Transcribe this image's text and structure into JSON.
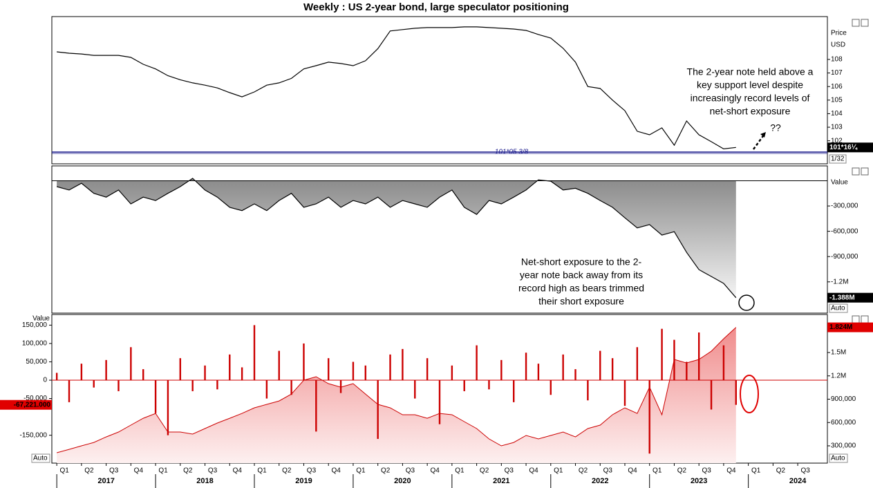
{
  "title": "Weekly : US 2-year bond, large speculator positioning",
  "x_axis": {
    "xlim": [
      2016.95,
      2024.8
    ],
    "x": [
      2017,
      2017.125,
      2017.25,
      2017.375,
      2017.5,
      2017.625,
      2017.75,
      2017.875,
      2018,
      2018.125,
      2018.25,
      2018.375,
      2018.5,
      2018.625,
      2018.75,
      2018.875,
      2019,
      2019.125,
      2019.25,
      2019.375,
      2019.5,
      2019.625,
      2019.75,
      2019.875,
      2020,
      2020.125,
      2020.25,
      2020.375,
      2020.5,
      2020.625,
      2020.75,
      2020.875,
      2021,
      2021.125,
      2021.25,
      2021.375,
      2021.5,
      2021.625,
      2021.75,
      2021.875,
      2022,
      2022.125,
      2022.25,
      2022.375,
      2022.5,
      2022.625,
      2022.75,
      2022.875,
      2023,
      2023.125,
      2023.25,
      2023.375,
      2023.5,
      2023.625,
      2023.75,
      2023.875
    ],
    "xticks": [
      {
        "value": 2017,
        "label": "Q1"
      },
      {
        "value": 2017.25,
        "label": "Q2"
      },
      {
        "value": 2017.5,
        "label": "Q3"
      },
      {
        "value": 2017.75,
        "label": "Q4"
      },
      {
        "value": 2018,
        "label": "Q1"
      },
      {
        "value": 2018.25,
        "label": "Q2"
      },
      {
        "value": 2018.5,
        "label": "Q3"
      },
      {
        "value": 2018.75,
        "label": "Q4"
      },
      {
        "value": 2019,
        "label": "Q1"
      },
      {
        "value": 2019.25,
        "label": "Q2"
      },
      {
        "value": 2019.5,
        "label": "Q3"
      },
      {
        "value": 2019.75,
        "label": "Q4"
      },
      {
        "value": 2020,
        "label": "Q1"
      },
      {
        "value": 2020.25,
        "label": "Q2"
      },
      {
        "value": 2020.5,
        "label": "Q3"
      },
      {
        "value": 2020.75,
        "label": "Q4"
      },
      {
        "value": 2021,
        "label": "Q1"
      },
      {
        "value": 2021.25,
        "label": "Q2"
      },
      {
        "value": 2021.5,
        "label": "Q3"
      },
      {
        "value": 2021.75,
        "label": "Q4"
      },
      {
        "value": 2022,
        "label": "Q1"
      },
      {
        "value": 2022.25,
        "label": "Q2"
      },
      {
        "value": 2022.5,
        "label": "Q3"
      },
      {
        "value": 2022.75,
        "label": "Q4"
      },
      {
        "value": 2023,
        "label": "Q1"
      },
      {
        "value": 2023.25,
        "label": "Q2"
      },
      {
        "value": 2023.5,
        "label": "Q3"
      },
      {
        "value": 2023.75,
        "label": "Q4"
      },
      {
        "value": 2024,
        "label": "Q1"
      },
      {
        "value": 2024.25,
        "label": "Q2"
      },
      {
        "value": 2024.5,
        "label": "Q3"
      }
    ],
    "years": [
      2017,
      2018,
      2019,
      2020,
      2021,
      2022,
      2023,
      2024
    ]
  },
  "chart_data": [
    {
      "type": "line",
      "axis_label": "Price",
      "unit": "USD",
      "scale_note": "1/32",
      "color": "#000000",
      "values": [
        108.56,
        108.46,
        108.4,
        108.3,
        108.3,
        108.3,
        108.15,
        107.64,
        107.3,
        106.8,
        106.5,
        106.27,
        106.1,
        105.9,
        105.55,
        105.24,
        105.6,
        106.1,
        106.27,
        106.6,
        107.3,
        107.54,
        107.8,
        107.7,
        107.54,
        107.9,
        108.8,
        110.1,
        110.2,
        110.3,
        110.35,
        110.35,
        110.35,
        110.4,
        110.4,
        110.35,
        110.3,
        110.24,
        110.14,
        109.84,
        109.58,
        108.82,
        107.8,
        106,
        105.86,
        105,
        104.22,
        102.7,
        102.44,
        102.95,
        101.67,
        103.46,
        102.44,
        101.93,
        101.4,
        101.508
      ],
      "last_value_label": "101*16¼",
      "support": {
        "value": 101.168,
        "label": "101*05 3/8",
        "color": "#1a1a8c"
      },
      "ylim": [
        100.3,
        111.16
      ],
      "yticks": [
        102,
        103,
        104,
        105,
        106,
        107,
        108
      ],
      "annotation": [
        "The 2-year note held above a",
        "key support level despite",
        "increasingly record levels of",
        "net-short exposure"
      ],
      "callout": "??"
    },
    {
      "type": "area",
      "axis_label": "Value",
      "scale_note": "Auto",
      "color": "#000000",
      "values": [
        -70000,
        -110000,
        -30000,
        -150000,
        -195000,
        -110000,
        -275000,
        -195000,
        -235000,
        -150000,
        -70000,
        28000,
        -110000,
        -195000,
        -315000,
        -355000,
        -275000,
        -355000,
        -235000,
        -150000,
        -315000,
        -275000,
        -195000,
        -315000,
        -235000,
        -275000,
        -195000,
        -315000,
        -235000,
        -275000,
        -315000,
        -195000,
        -110000,
        -315000,
        -400000,
        -235000,
        -275000,
        -195000,
        -110000,
        10000,
        -5000,
        -110000,
        -90000,
        -150000,
        -235000,
        -315000,
        -440000,
        -560000,
        -520000,
        -645000,
        -605000,
        -850000,
        -1055000,
        -1136000,
        -1218000,
        -1388000
      ],
      "last_value_label": "-1.388M",
      "ylim": [
        -1571000,
        176000
      ],
      "yticks": [
        {
          "value": -300000,
          "label": "-300,000"
        },
        {
          "value": -600000,
          "label": "-600,000"
        },
        {
          "value": -900000,
          "label": "-900,000"
        },
        {
          "value": -1200000,
          "label": "-1.2M"
        }
      ],
      "annotation": [
        "Net-short exposure to the 2-",
        "year note back away from its",
        "record high as bears trimmed",
        "their short exposure"
      ]
    },
    {
      "type": "bar",
      "axis_label": "Value",
      "scale_notes": [
        "Auto",
        "Auto"
      ],
      "series": [
        {
          "color": "#cc0000",
          "values": [
            20000,
            -60000,
            45000,
            -20000,
            55000,
            -30000,
            90000,
            30000,
            -90000,
            -150000,
            60000,
            -30000,
            40000,
            -25000,
            70000,
            35000,
            150000,
            -50000,
            80000,
            -40000,
            100000,
            -140000,
            60000,
            -35000,
            50000,
            40000,
            -160000,
            70000,
            85000,
            -50000,
            60000,
            -120000,
            40000,
            -30000,
            95000,
            -25000,
            55000,
            -60000,
            75000,
            45000,
            -40000,
            70000,
            30000,
            -55000,
            80000,
            60000,
            -70000,
            90000,
            -200000,
            140000,
            110000,
            50000,
            130000,
            -80000,
            95000,
            -67221
          ],
          "last_value_label": "-67,221.000"
        },
        {
          "color": "#cc0000",
          "axis": "y2",
          "values": [
            211000,
            255000,
            300000,
            344000,
            415000,
            478000,
            567000,
            655000,
            717000,
            478000,
            478000,
            451000,
            522000,
            593000,
            655000,
            717000,
            789000,
            833000,
            877000,
            966000,
            1144000,
            1189000,
            1100000,
            1055000,
            1100000,
            966000,
            833000,
            789000,
            700000,
            700000,
            655000,
            717000,
            700000,
            611000,
            522000,
            389000,
            300000,
            344000,
            433000,
            389000,
            433000,
            478000,
            415000,
            522000,
            567000,
            700000,
            789000,
            717000,
            1055000,
            700000,
            1411000,
            1366000,
            1411000,
            1517000,
            1677000,
            1824000
          ],
          "last_value_label": "1.824M"
        }
      ],
      "ylim": [
        -226000,
        179000
      ],
      "yticks": [
        {
          "value": 150000,
          "label": "150,000"
        },
        {
          "value": 100000,
          "label": "100,000"
        },
        {
          "value": 50000,
          "label": "50,000"
        },
        0,
        {
          "value": -50000,
          "label": "-50,000"
        },
        {
          "value": -150000,
          "label": "-150,000"
        }
      ],
      "y2lim": [
        77800,
        1989000
      ],
      "y2ticks": [
        {
          "value": 300000,
          "label": "300,000"
        },
        {
          "value": 600000,
          "label": "600,000"
        },
        {
          "value": 900000,
          "label": "900,000"
        },
        {
          "value": 1200000,
          "label": "1.2M"
        },
        {
          "value": 1500000,
          "label": "1.5M"
        }
      ]
    }
  ]
}
